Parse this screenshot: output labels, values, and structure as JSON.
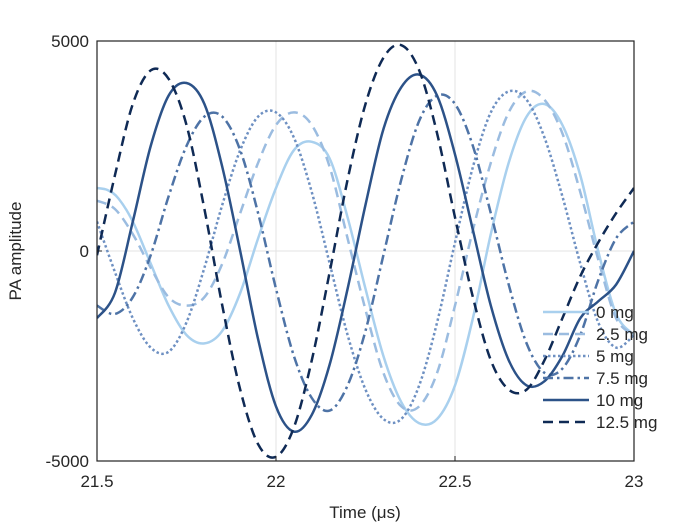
{
  "chart_data": {
    "type": "line",
    "title": "",
    "xlabel": "Time (μs)",
    "ylabel": "PA amplitude",
    "xlim": [
      21.5,
      23
    ],
    "ylim": [
      -5000,
      5000
    ],
    "xticks": [
      "21.5",
      "22",
      "22.5",
      "23"
    ],
    "yticks": [
      "-5000",
      "0",
      "5000"
    ],
    "grid": true,
    "legend_position": "bottom-right",
    "series": [
      {
        "name": "0 mg",
        "color": "#a9d0ee",
        "dash": "solid",
        "x": [
          21.5,
          21.53,
          21.56,
          21.6,
          21.65,
          21.7,
          21.75,
          21.8,
          21.85,
          21.9,
          21.95,
          22.0,
          22.05,
          22.1,
          22.15,
          22.2,
          22.25,
          22.3,
          22.35,
          22.4,
          22.45,
          22.5,
          22.55,
          22.6,
          22.65,
          22.7,
          22.75,
          22.8,
          22.85,
          22.9,
          22.95,
          23.0
        ],
        "y": [
          1500,
          1450,
          1250,
          700,
          -300,
          -1300,
          -2000,
          -2200,
          -1900,
          -1000,
          300,
          1500,
          2400,
          2600,
          2200,
          800,
          -900,
          -2500,
          -3600,
          -4100,
          -4000,
          -3200,
          -1600,
          400,
          2100,
          3200,
          3500,
          3000,
          1800,
          0,
          -1500,
          -2000
        ]
      },
      {
        "name": "2.5 mg",
        "color": "#9bbce0",
        "dash": "dashed",
        "x": [
          21.5,
          21.55,
          21.6,
          21.65,
          21.7,
          21.75,
          21.8,
          21.85,
          21.9,
          21.95,
          22.0,
          22.05,
          22.1,
          22.15,
          22.2,
          22.25,
          22.3,
          22.35,
          22.4,
          22.45,
          22.5,
          22.55,
          22.6,
          22.65,
          22.7,
          22.75,
          22.8,
          22.85,
          22.9,
          22.95,
          23.0
        ],
        "y": [
          1200,
          1000,
          400,
          -400,
          -1100,
          -1300,
          -1100,
          -300,
          900,
          2100,
          3000,
          3300,
          3000,
          2000,
          300,
          -1400,
          -2900,
          -3700,
          -3700,
          -2900,
          -1300,
          500,
          2100,
          3300,
          3800,
          3600,
          2800,
          1400,
          -200,
          -1600,
          -2000
        ]
      },
      {
        "name": "5 mg",
        "color": "#6e90c2",
        "dash": "dotted",
        "x": [
          21.5,
          21.55,
          21.6,
          21.65,
          21.7,
          21.75,
          21.8,
          21.85,
          21.9,
          21.95,
          22.0,
          22.05,
          22.1,
          22.15,
          22.2,
          22.25,
          22.3,
          22.35,
          22.4,
          22.45,
          22.5,
          22.55,
          22.6,
          22.65,
          22.7,
          22.75,
          22.8,
          22.85,
          22.9,
          22.95,
          23.0
        ],
        "y": [
          700,
          -500,
          -1600,
          -2300,
          -2400,
          -1700,
          -400,
          1100,
          2400,
          3200,
          3300,
          2700,
          1400,
          -300,
          -2000,
          -3300,
          -4000,
          -4000,
          -3200,
          -1700,
          200,
          2000,
          3300,
          3800,
          3600,
          2700,
          1300,
          -300,
          -1700,
          -2300,
          -2000
        ]
      },
      {
        "name": "7.5 mg",
        "color": "#4e73a6",
        "dash": "dashdot",
        "x": [
          21.5,
          21.55,
          21.6,
          21.65,
          21.7,
          21.75,
          21.8,
          21.85,
          21.9,
          21.95,
          22.0,
          22.05,
          22.1,
          22.15,
          22.2,
          22.25,
          22.3,
          22.35,
          22.4,
          22.45,
          22.5,
          22.55,
          22.6,
          22.65,
          22.7,
          22.75,
          22.8,
          22.85,
          22.9,
          22.95,
          23.0
        ],
        "y": [
          -1300,
          -1500,
          -1100,
          -100,
          1300,
          2500,
          3200,
          3200,
          2400,
          900,
          -900,
          -2500,
          -3500,
          -3800,
          -3200,
          -1900,
          -100,
          1700,
          3100,
          3700,
          3500,
          2500,
          900,
          -800,
          -2200,
          -2900,
          -2800,
          -2000,
          -700,
          300,
          700
        ]
      },
      {
        "name": "10 mg",
        "color": "#2c5288",
        "dash": "solid",
        "x": [
          21.5,
          21.55,
          21.6,
          21.65,
          21.7,
          21.75,
          21.8,
          21.85,
          21.9,
          21.95,
          22.0,
          22.05,
          22.1,
          22.15,
          22.2,
          22.25,
          22.3,
          22.35,
          22.4,
          22.45,
          22.5,
          22.55,
          22.6,
          22.65,
          22.7,
          22.75,
          22.8,
          22.85,
          22.9,
          22.95,
          23.0
        ],
        "y": [
          -1600,
          -1000,
          700,
          2500,
          3700,
          4000,
          3500,
          2000,
          0,
          -2100,
          -3700,
          -4300,
          -3900,
          -2700,
          -900,
          1100,
          2900,
          3900,
          4200,
          3700,
          2300,
          500,
          -1300,
          -2600,
          -3200,
          -3100,
          -2500,
          -1600,
          -1200,
          -800,
          0
        ]
      },
      {
        "name": "12.5 mg",
        "color": "#0f2a55",
        "dash": "dashed",
        "x": [
          21.5,
          21.55,
          21.6,
          21.65,
          21.7,
          21.75,
          21.8,
          21.85,
          21.9,
          21.95,
          22.0,
          22.05,
          22.1,
          22.15,
          22.2,
          22.25,
          22.3,
          22.35,
          22.4,
          22.45,
          22.5,
          22.55,
          22.6,
          22.65,
          22.7,
          22.75,
          22.8,
          22.85,
          22.9,
          22.95,
          23.0
        ],
        "y": [
          -100,
          1800,
          3500,
          4300,
          4100,
          3000,
          1000,
          -1300,
          -3300,
          -4600,
          -4900,
          -4200,
          -2600,
          -500,
          1700,
          3500,
          4600,
          4900,
          4300,
          2800,
          800,
          -1100,
          -2600,
          -3300,
          -3300,
          -2600,
          -1600,
          -600,
          200,
          900,
          1500
        ]
      }
    ]
  }
}
